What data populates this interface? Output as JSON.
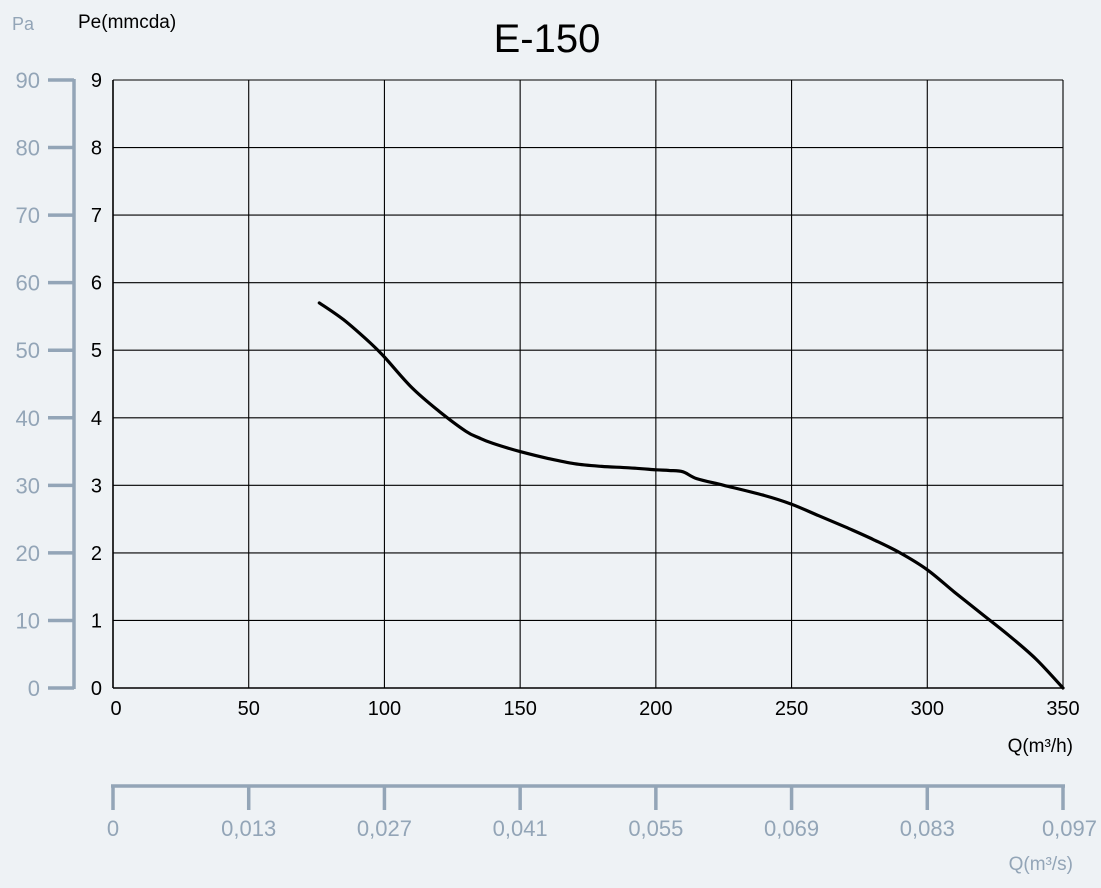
{
  "chart_data": {
    "type": "line",
    "title": "E-150",
    "xlabel": "Q(m³/h)",
    "ylabel": "Pe(mmcda)",
    "xlim": [
      0,
      350
    ],
    "ylim": [
      0,
      9
    ],
    "x_ticks": [
      0,
      50,
      100,
      150,
      200,
      250,
      300,
      350
    ],
    "y_ticks": [
      0,
      1,
      2,
      3,
      4,
      5,
      6,
      7,
      8,
      9
    ],
    "grid": true,
    "secondary_y": {
      "label": "Pa",
      "ticks": [
        0,
        10,
        20,
        30,
        40,
        50,
        60,
        70,
        80,
        90
      ]
    },
    "secondary_x": {
      "label": "Q(m³/s)",
      "tick_labels": [
        "0",
        "0,013",
        "0,027",
        "0,041",
        "0,055",
        "0,069",
        "0,083",
        "0,097"
      ]
    },
    "series": [
      {
        "x": [
          76,
          85,
          95,
          100,
          110,
          120,
          130,
          135,
          140,
          150,
          160,
          170,
          180,
          190,
          200,
          205,
          210,
          215,
          225,
          240,
          250,
          260,
          270,
          280,
          290,
          300,
          310,
          320,
          330,
          340,
          350
        ],
        "y": [
          5.7,
          5.45,
          5.1,
          4.9,
          4.45,
          4.1,
          3.8,
          3.7,
          3.62,
          3.5,
          3.4,
          3.32,
          3.28,
          3.26,
          3.23,
          3.22,
          3.2,
          3.1,
          3.0,
          2.85,
          2.72,
          2.55,
          2.38,
          2.2,
          2.0,
          1.75,
          1.42,
          1.1,
          0.78,
          0.43,
          0.0
        ]
      }
    ]
  },
  "colors": {
    "background": "#eef2f5",
    "grid": "#000000",
    "curve": "#000000",
    "secondary_axis": "#93a5b7",
    "text": "#000000"
  }
}
